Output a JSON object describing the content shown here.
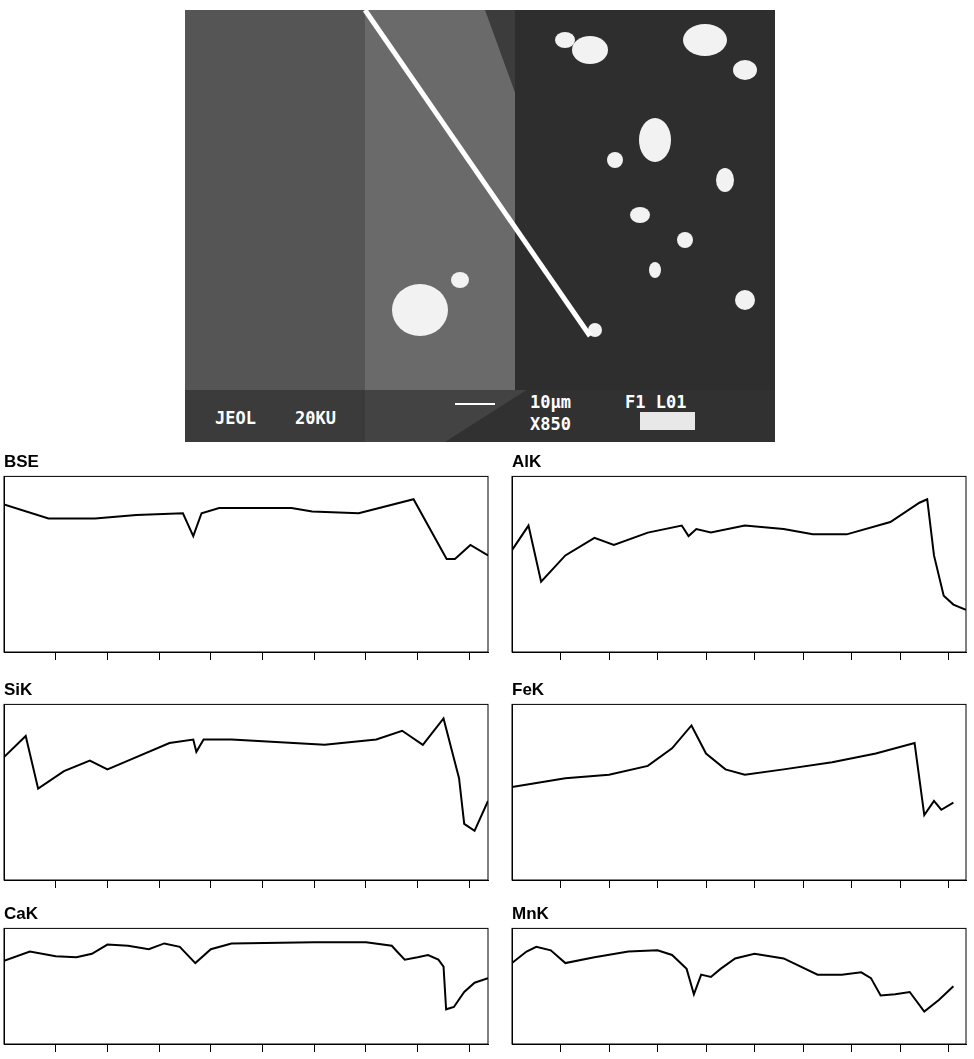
{
  "image": {
    "labels": [
      "JEOL",
      "20KU",
      "10μm",
      "X850",
      "F1 L01"
    ]
  },
  "chart_data": [
    {
      "type": "line",
      "title": "BSE",
      "xlim": [
        0,
        9.36
      ],
      "xticks": [
        1,
        2,
        3,
        4,
        5,
        6,
        7,
        8,
        9
      ],
      "ylim": [
        0,
        100
      ],
      "yticks": [],
      "grid": false,
      "tick_labels": false,
      "series": [
        {
          "name": "BSE",
          "color": "#000000",
          "line_style": "solid",
          "marker": "none",
          "x": [
            0,
            0.86,
            1.76,
            2.56,
            3.46,
            3.66,
            3.82,
            4.16,
            5.56,
            5.96,
            6.86,
            7.92,
            8.56,
            8.72,
            9.02,
            9.36
          ],
          "values": [
            84,
            76,
            76,
            78,
            79,
            66,
            79,
            82,
            82,
            80,
            79,
            87,
            53,
            53,
            61,
            55
          ]
        }
      ]
    },
    {
      "type": "line",
      "title": "AlK",
      "xlim": [
        0,
        9.36
      ],
      "xticks": [
        1,
        2,
        3,
        4,
        5,
        6,
        7,
        8,
        9
      ],
      "ylim": [
        0,
        100
      ],
      "yticks": [],
      "grid": false,
      "tick_labels": false,
      "series": [
        {
          "name": "AlK",
          "color": "#000000",
          "line_style": "solid",
          "marker": "none",
          "x": [
            0,
            0.34,
            0.6,
            1.1,
            1.7,
            2.1,
            2.8,
            3.5,
            3.64,
            3.8,
            4.1,
            4.8,
            5.6,
            6.2,
            6.9,
            7.8,
            8.4,
            8.56,
            8.7,
            8.9,
            9.1,
            9.36
          ],
          "values": [
            58,
            72,
            40,
            55,
            65,
            61,
            68,
            72,
            66,
            70,
            68,
            72,
            70,
            67,
            67,
            74,
            85,
            87,
            55,
            32,
            27,
            24
          ]
        }
      ]
    },
    {
      "type": "line",
      "title": "SiK",
      "xlim": [
        0,
        9.36
      ],
      "xticks": [
        1,
        2,
        3,
        4,
        5,
        6,
        7,
        8,
        9
      ],
      "ylim": [
        0,
        100
      ],
      "yticks": [],
      "grid": false,
      "tick_labels": false,
      "series": [
        {
          "name": "SiK",
          "color": "#000000",
          "line_style": "solid",
          "marker": "none",
          "x": [
            0,
            0.42,
            0.66,
            1.16,
            1.66,
            2.0,
            2.4,
            3.2,
            3.66,
            3.72,
            3.86,
            4.4,
            5.6,
            6.2,
            7.2,
            7.7,
            8.1,
            8.5,
            8.8,
            8.9,
            9.1,
            9.36
          ],
          "values": [
            70,
            82,
            52,
            62,
            68,
            63,
            68,
            78,
            80,
            73,
            80,
            80,
            78,
            77,
            80,
            85,
            77,
            92,
            58,
            32,
            28,
            45
          ]
        }
      ]
    },
    {
      "type": "line",
      "title": "FeK",
      "xlim": [
        0,
        9.36
      ],
      "xticks": [
        1,
        2,
        3,
        4,
        5,
        6,
        7,
        8,
        9
      ],
      "ylim": [
        0,
        100
      ],
      "yticks": [],
      "grid": false,
      "tick_labels": false,
      "series": [
        {
          "name": "FeK",
          "color": "#000000",
          "line_style": "solid",
          "marker": "none",
          "x": [
            0,
            1.1,
            2.0,
            2.8,
            3.3,
            3.7,
            4.0,
            4.4,
            4.8,
            5.6,
            6.6,
            7.5,
            8.3,
            8.5,
            8.7,
            8.85,
            9.1
          ],
          "values": [
            53,
            58,
            60,
            65,
            75,
            88,
            72,
            63,
            60,
            63,
            67,
            72,
            78,
            37,
            45,
            40,
            44
          ]
        }
      ]
    },
    {
      "type": "line",
      "title": "CaK",
      "xlim": [
        0,
        9.36
      ],
      "xticks": [
        1,
        2,
        3,
        4,
        5,
        6,
        7,
        8,
        9
      ],
      "ylim": [
        0,
        100
      ],
      "yticks": [],
      "grid": false,
      "tick_labels": false,
      "series": [
        {
          "name": "CaK",
          "color": "#000000",
          "line_style": "solid",
          "marker": "none",
          "x": [
            0,
            0.5,
            1.0,
            1.4,
            1.7,
            2.0,
            2.4,
            2.8,
            3.1,
            3.4,
            3.7,
            4.0,
            4.4,
            6.0,
            7.0,
            7.5,
            7.6,
            7.75,
            8.0,
            8.2,
            8.4,
            8.5,
            8.55,
            8.7,
            8.9,
            9.1,
            9.36
          ],
          "values": [
            72,
            80,
            76,
            75,
            78,
            86,
            85,
            82,
            87,
            84,
            70,
            82,
            87,
            88,
            88,
            85,
            80,
            73,
            75,
            77,
            73,
            67,
            30,
            32,
            45,
            53,
            57
          ]
        }
      ]
    },
    {
      "type": "line",
      "title": "MnK",
      "xlim": [
        0,
        9.36
      ],
      "xticks": [
        1,
        2,
        3,
        4,
        5,
        6,
        7,
        8,
        9
      ],
      "ylim": [
        0,
        100
      ],
      "yticks": [],
      "grid": false,
      "tick_labels": false,
      "series": [
        {
          "name": "MnK",
          "color": "#000000",
          "line_style": "solid",
          "marker": "none",
          "x": [
            0,
            0.3,
            0.5,
            0.8,
            1.1,
            1.7,
            2.4,
            3.0,
            3.3,
            3.6,
            3.75,
            3.9,
            4.1,
            4.3,
            4.6,
            5.0,
            5.6,
            6.3,
            6.8,
            7.2,
            7.4,
            7.6,
            7.9,
            8.2,
            8.5,
            8.8,
            9.1
          ],
          "values": [
            70,
            80,
            84,
            81,
            70,
            75,
            80,
            81,
            77,
            65,
            43,
            60,
            58,
            65,
            74,
            78,
            74,
            60,
            60,
            62,
            57,
            42,
            43,
            45,
            28,
            38,
            50
          ]
        }
      ]
    }
  ]
}
